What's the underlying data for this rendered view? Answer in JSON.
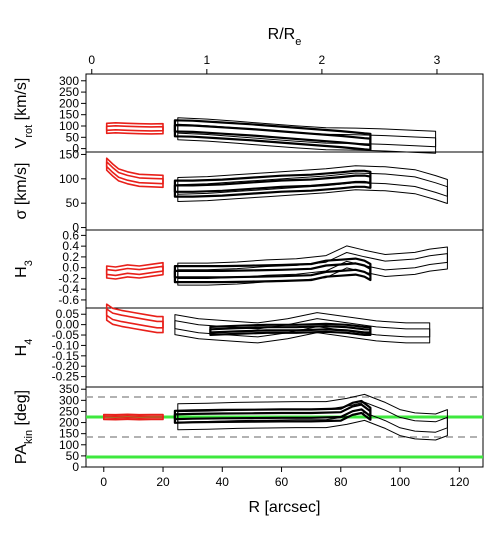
{
  "chart_data": {
    "type": "line",
    "colors": {
      "inner_region": "#e8201a",
      "outer_region": "#000000",
      "reference_pa": "#3ee83e",
      "dashed_pa": "#999999"
    },
    "top_axis": {
      "label": "R/R",
      "label_subscript": "e",
      "range": [
        -0.05,
        3.4
      ],
      "ticks": [
        "0",
        "1",
        "2",
        "3"
      ],
      "tick_values": [
        0,
        1,
        2,
        3
      ]
    },
    "bottom_axis": {
      "label": "R [arcsec]",
      "range": [
        -6,
        128
      ],
      "ticks": [
        "0",
        "20",
        "40",
        "60",
        "80",
        "100",
        "120"
      ],
      "tick_values": [
        0,
        20,
        40,
        60,
        80,
        100,
        120
      ]
    },
    "panels": [
      {
        "id": "vrot",
        "ylabel": "V",
        "ylabel_subscript": "rot",
        "ylabel_suffix": " [km/s]",
        "ylim": [
          -15,
          330
        ],
        "ticks": [
          "0",
          "50",
          "100",
          "150",
          "200",
          "250",
          "300"
        ],
        "tick_values": [
          0,
          50,
          100,
          150,
          200,
          250,
          300
        ],
        "red_x": [
          1,
          4,
          8,
          12,
          16,
          20
        ],
        "red_y": [
          90,
          92,
          90,
          88,
          87,
          88
        ],
        "red_width": 10,
        "black_x": [
          24,
          30,
          40,
          50,
          60,
          70,
          80,
          85,
          88,
          90
        ],
        "black_y": [
          90,
          88,
          80,
          72,
          62,
          52,
          42,
          36,
          32,
          30
        ],
        "black_width": 16,
        "thin_x": [
          25,
          35,
          45,
          55,
          65,
          75,
          85,
          95,
          105,
          112
        ],
        "thin_y": [
          88,
          82,
          72,
          62,
          52,
          44,
          42,
          38,
          32,
          28
        ],
        "thin_width": 22
      },
      {
        "id": "sigma",
        "ylabel": "σ [km/s]",
        "ylim": [
          -5,
          155
        ],
        "ticks": [
          "0",
          "50",
          "100",
          "150"
        ],
        "tick_values": [
          0,
          50,
          100,
          150
        ],
        "red_x": [
          1,
          3,
          5,
          8,
          12,
          16,
          20
        ],
        "red_y": [
          130,
          118,
          108,
          102,
          97,
          96,
          95
        ],
        "red_width": 12,
        "black_x": [
          24,
          30,
          40,
          50,
          60,
          70,
          80,
          85,
          88,
          90
        ],
        "black_y": [
          80,
          80,
          82,
          86,
          90,
          92,
          97,
          100,
          100,
          98
        ],
        "black_width": 16,
        "thin_x": [
          25,
          35,
          45,
          55,
          65,
          75,
          85,
          95,
          105,
          112,
          116
        ],
        "thin_y": [
          78,
          80,
          84,
          88,
          92,
          96,
          102,
          100,
          94,
          82,
          74
        ],
        "thin_width": 24
      },
      {
        "id": "h3",
        "ylabel": "H",
        "ylabel_subscript": "3",
        "ylim": [
          -0.75,
          0.7
        ],
        "ticks": [
          "-0.6",
          "-0.4",
          "-0.2",
          "0.0",
          "0.2",
          "0.4",
          "0.6"
        ],
        "tick_values": [
          -0.6,
          -0.4,
          -0.2,
          0.0,
          0.2,
          0.4,
          0.6
        ],
        "red_x": [
          1,
          4,
          8,
          12,
          16,
          20
        ],
        "red_y": [
          -0.08,
          -0.1,
          -0.06,
          -0.08,
          -0.05,
          -0.02
        ],
        "red_width": 12,
        "black_x": [
          24,
          30,
          40,
          50,
          60,
          70,
          75,
          80,
          85,
          88,
          90
        ],
        "black_y": [
          -0.12,
          -0.12,
          -0.12,
          -0.11,
          -0.1,
          -0.08,
          -0.02,
          0.0,
          0.02,
          -0.02,
          -0.08
        ],
        "black_width": 16,
        "thin_x": [
          25,
          35,
          45,
          55,
          65,
          75,
          82,
          88,
          95,
          105,
          110,
          116
        ],
        "thin_y": [
          -0.12,
          -0.12,
          -0.1,
          -0.06,
          -0.04,
          0.02,
          0.2,
          0.12,
          0.04,
          0.08,
          0.14,
          0.18
        ],
        "thin_width": 22
      },
      {
        "id": "h4",
        "ylabel": "H",
        "ylabel_subscript": "4",
        "ylim": [
          -0.3,
          0.08
        ],
        "ticks": [
          "-0.25",
          "-0.20",
          "-0.15",
          "-0.10",
          "-0.05",
          "0.00",
          "0.05"
        ],
        "tick_values": [
          -0.25,
          -0.2,
          -0.15,
          -0.1,
          -0.05,
          0.0,
          0.05
        ],
        "red_x": [
          1,
          3,
          6,
          10,
          14,
          18,
          20
        ],
        "red_y": [
          0.06,
          0.04,
          0.03,
          0.02,
          0.01,
          0.0,
          0.0
        ],
        "red_width": 16,
        "black_x": [
          36,
          45,
          55,
          65,
          75,
          82,
          88,
          90
        ],
        "black_y": [
          -0.03,
          -0.025,
          -0.02,
          -0.02,
          -0.015,
          -0.02,
          -0.03,
          -0.03
        ],
        "black_width": 8,
        "thin_x": [
          24,
          32,
          42,
          52,
          62,
          72,
          82,
          92,
          102,
          110
        ],
        "thin_y": [
          0.0,
          -0.02,
          -0.03,
          -0.04,
          -0.02,
          0.01,
          -0.01,
          -0.03,
          -0.04,
          -0.04
        ],
        "thin_width": 20
      },
      {
        "id": "pa",
        "ylabel": "PA",
        "ylabel_subscript": "kin",
        "ylabel_suffix": " [deg]",
        "ylim": [
          0,
          360
        ],
        "ticks": [
          "0",
          "50",
          "100",
          "150",
          "200",
          "250",
          "300",
          "350"
        ],
        "tick_values": [
          0,
          50,
          100,
          150,
          200,
          250,
          300,
          350
        ],
        "hlines_green": [
          225,
          45
        ],
        "hlines_dashed": [
          315,
          135
        ],
        "red_x": [
          0,
          4,
          8,
          12,
          16,
          20
        ],
        "red_y": [
          225,
          224,
          226,
          224,
          225,
          225
        ],
        "red_width": 5,
        "black_x": [
          24,
          30,
          40,
          50,
          60,
          70,
          80,
          84,
          87,
          90
        ],
        "black_y": [
          226,
          228,
          230,
          231,
          232,
          232,
          236,
          262,
          270,
          240
        ],
        "black_width": 12,
        "thin_x": [
          25,
          35,
          45,
          55,
          65,
          75,
          82,
          88,
          95,
          100,
          105,
          112,
          116
        ],
        "thin_y": [
          226,
          228,
          232,
          234,
          236,
          236,
          250,
          268,
          232,
          200,
          185,
          180,
          200
        ],
        "thin_width": 26
      }
    ]
  }
}
